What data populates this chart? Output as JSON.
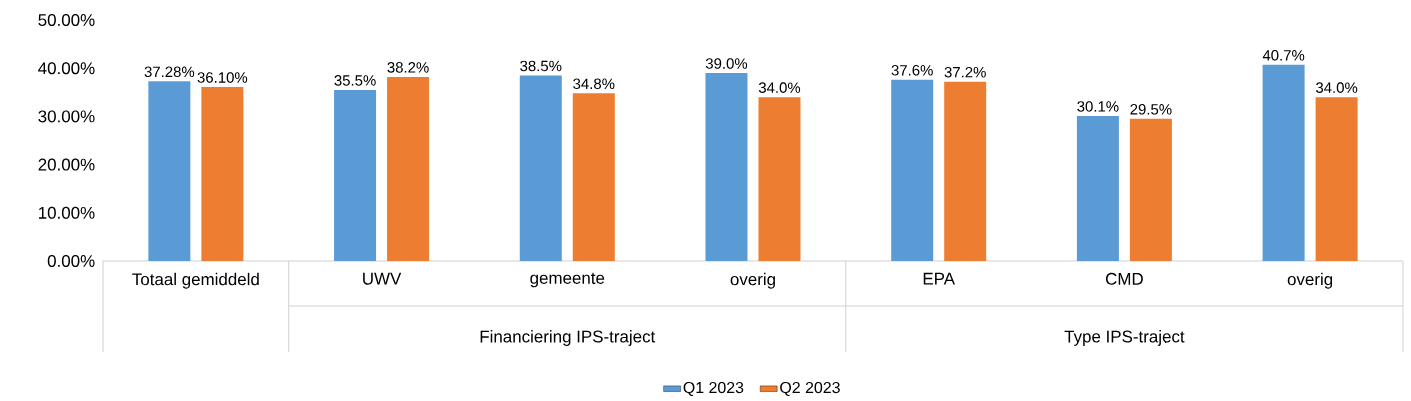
{
  "chart_data": {
    "type": "bar",
    "categories": [
      "Totaal gemiddeld",
      "UWV",
      "gemeente",
      "overig",
      "EPA",
      "CMD",
      "overig"
    ],
    "series": [
      {
        "name": "Q1 2023",
        "color": "#5b9bd5",
        "values": [
          37.28,
          35.5,
          38.5,
          39.0,
          37.6,
          30.1,
          40.7
        ],
        "value_labels": [
          "37.28%",
          "35.5%",
          "38.5%",
          "39.0%",
          "37.6%",
          "30.1%",
          "40.7%"
        ]
      },
      {
        "name": "Q2 2023",
        "color": "#ed7d31",
        "values": [
          36.1,
          38.2,
          34.8,
          34.0,
          37.2,
          29.5,
          34.0
        ],
        "value_labels": [
          "36.10%",
          "38.2%",
          "34.8%",
          "34.0%",
          "37.2%",
          "29.5%",
          "34.0%"
        ]
      }
    ],
    "ylim": [
      0,
      50
    ],
    "yticks": [
      {
        "value": 0,
        "label": "0.00%"
      },
      {
        "value": 10,
        "label": "10.00%"
      },
      {
        "value": 20,
        "label": "20.00%"
      },
      {
        "value": 30,
        "label": "30.00%"
      },
      {
        "value": 40,
        "label": "40.00%"
      },
      {
        "value": 50,
        "label": "50.00%"
      }
    ],
    "legend": "bottom",
    "annotations": [
      "Financiering IPS-traject",
      "Type IPS-traject"
    ]
  }
}
